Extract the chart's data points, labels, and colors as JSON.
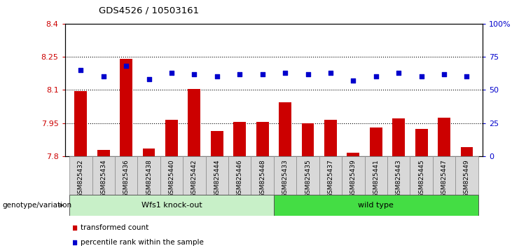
{
  "title": "GDS4526 / 10503161",
  "samples": [
    "GSM825432",
    "GSM825434",
    "GSM825436",
    "GSM825438",
    "GSM825440",
    "GSM825442",
    "GSM825444",
    "GSM825446",
    "GSM825448",
    "GSM825433",
    "GSM825435",
    "GSM825437",
    "GSM825439",
    "GSM825441",
    "GSM825443",
    "GSM825445",
    "GSM825447",
    "GSM825449"
  ],
  "bar_values": [
    8.095,
    7.83,
    8.24,
    7.835,
    7.965,
    8.105,
    7.915,
    7.955,
    7.955,
    8.045,
    7.95,
    7.965,
    7.815,
    7.93,
    7.97,
    7.925,
    7.975,
    7.84
  ],
  "dot_values": [
    65,
    60,
    68,
    58,
    63,
    62,
    60,
    62,
    62,
    63,
    62,
    63,
    57,
    60,
    63,
    60,
    62,
    60
  ],
  "ylim_left": [
    7.8,
    8.4
  ],
  "ylim_right": [
    0,
    100
  ],
  "yticks_left": [
    7.8,
    7.95,
    8.1,
    8.25,
    8.4
  ],
  "yticks_right": [
    0,
    25,
    50,
    75,
    100
  ],
  "ytick_labels_left": [
    "7.8",
    "7.95",
    "8.1",
    "8.25",
    "8.4"
  ],
  "ytick_labels_right": [
    "0",
    "25",
    "50",
    "75",
    "100%"
  ],
  "hlines": [
    7.95,
    8.1,
    8.25
  ],
  "bar_color": "#cc0000",
  "dot_color": "#0000cc",
  "group1_label": "Wfs1 knock-out",
  "group2_label": "wild type",
  "group1_count": 9,
  "group2_count": 9,
  "group1_color": "#c8f0c8",
  "group2_color": "#44dd44",
  "genotype_label": "genotype/variation",
  "legend_bar": "transformed count",
  "legend_dot": "percentile rank within the sample",
  "tick_label_color_left": "#cc0000",
  "tick_label_color_right": "#0000cc",
  "tick_bg_color": "#d8d8d8",
  "tick_border_color": "#888888"
}
